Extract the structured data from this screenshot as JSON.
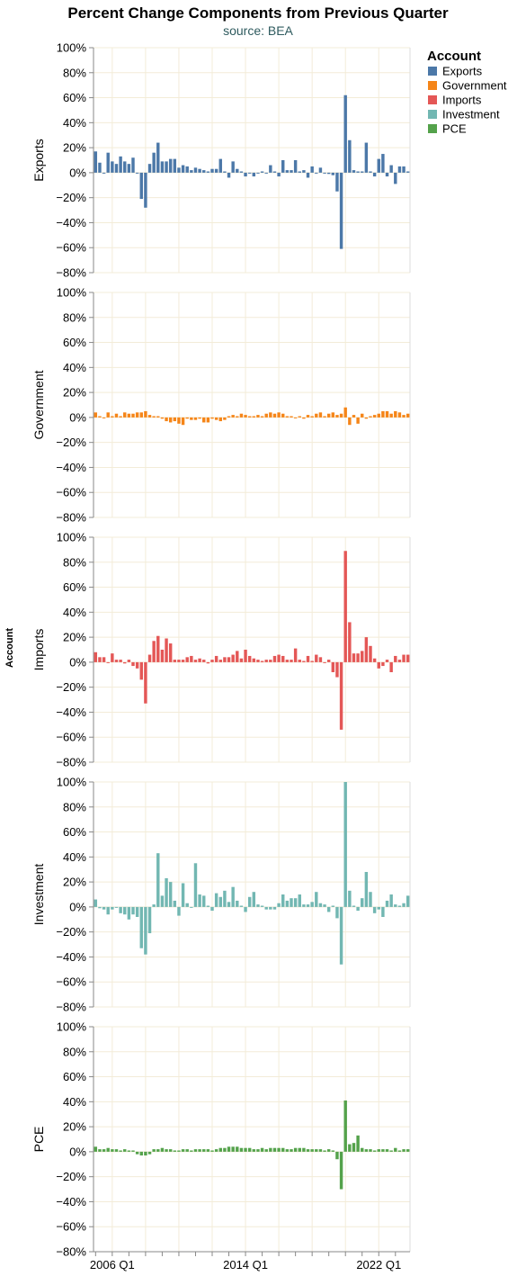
{
  "chart_data": {
    "type": "bar",
    "title": "Percent Change Components from Previous Quarter",
    "subtitle": "source: BEA",
    "row_title": "Account",
    "y_ticks": [
      "100%",
      "80%",
      "60%",
      "40%",
      "20%",
      "0%",
      "−20%",
      "−40%",
      "−60%",
      "−80%"
    ],
    "ylim": [
      -80,
      100
    ],
    "x_tick_labels": [
      {
        "label": "2006 Q1",
        "index": 4
      },
      {
        "label": "2014 Q1",
        "index": 36
      },
      {
        "label": "2022 Q1",
        "index": 68
      }
    ],
    "x_start": "2005 Q1",
    "n_quarters": 76,
    "legend": {
      "title": "Account",
      "placement": "top-right",
      "items": [
        {
          "label": "Exports",
          "color": "#4c78a8"
        },
        {
          "label": "Government",
          "color": "#f58518"
        },
        {
          "label": "Imports",
          "color": "#e45756"
        },
        {
          "label": "Investment",
          "color": "#72b7b2"
        },
        {
          "label": "PCE",
          "color": "#54a24b"
        }
      ]
    },
    "series": [
      {
        "name": "Exports",
        "color": "#4c78a8",
        "values": [
          17,
          8,
          0,
          16,
          9,
          7,
          13,
          9,
          7,
          12,
          0,
          -21,
          -28,
          7,
          16,
          24,
          9,
          9,
          11,
          11,
          4,
          6,
          5,
          2,
          4,
          3,
          2,
          1,
          3,
          3,
          11,
          1,
          -4,
          9,
          3,
          1,
          -3,
          0,
          -3,
          0,
          1,
          0,
          6,
          1,
          -3,
          10,
          2,
          2,
          10,
          1,
          2,
          -4,
          5,
          0,
          4,
          0,
          -1,
          -2,
          -15,
          -61,
          62,
          26,
          2,
          1,
          1,
          24,
          1,
          -3,
          11,
          15,
          -3,
          6,
          -9,
          5,
          5,
          1
        ]
      },
      {
        "name": "Government",
        "color": "#f58518",
        "values": [
          4,
          1,
          0,
          4,
          1,
          3,
          1,
          4,
          3,
          3,
          4,
          4,
          5,
          2,
          1,
          1,
          -1,
          -3,
          -4,
          -3,
          -5,
          -6,
          -1,
          -2,
          -2,
          -1,
          -4,
          -4,
          -1,
          -2,
          -3,
          -2,
          1,
          2,
          1,
          3,
          2,
          1,
          1,
          2,
          1,
          3,
          4,
          3,
          4,
          3,
          1,
          1,
          0,
          1,
          -1,
          2,
          1,
          3,
          4,
          1,
          3,
          4,
          2,
          3,
          8,
          -6,
          2,
          -5,
          3,
          -1,
          1,
          2,
          3,
          5,
          5,
          3,
          5,
          4,
          2,
          3
        ]
      },
      {
        "name": "Imports",
        "color": "#e45756",
        "values": [
          8,
          4,
          4,
          0,
          7,
          2,
          2,
          -1,
          2,
          -3,
          -5,
          -14,
          -33,
          6,
          17,
          21,
          10,
          19,
          15,
          2,
          2,
          2,
          4,
          5,
          2,
          3,
          2,
          -1,
          2,
          5,
          2,
          4,
          4,
          6,
          9,
          3,
          10,
          5,
          3,
          2,
          1,
          2,
          2,
          5,
          6,
          5,
          2,
          2,
          11,
          2,
          1,
          5,
          1,
          6,
          4,
          0,
          2,
          -8,
          -12,
          -54,
          89,
          32,
          7,
          7,
          9,
          20,
          13,
          3,
          -5,
          -3,
          2,
          -8,
          5,
          2,
          6,
          6
        ]
      },
      {
        "name": "Investment",
        "color": "#72b7b2",
        "values": [
          6,
          -1,
          -2,
          -6,
          -2,
          0,
          -5,
          -6,
          -10,
          -6,
          -8,
          -33,
          -38,
          -21,
          2,
          43,
          9,
          23,
          20,
          5,
          -7,
          19,
          3,
          0,
          35,
          10,
          9,
          1,
          -3,
          11,
          8,
          13,
          4,
          16,
          5,
          1,
          -4,
          8,
          12,
          2,
          1,
          -2,
          -2,
          -2,
          3,
          10,
          5,
          7,
          7,
          10,
          2,
          2,
          4,
          12,
          3,
          2,
          -4,
          1,
          -9,
          -46,
          100,
          13,
          1,
          -3,
          7,
          28,
          12,
          -5,
          -2,
          -8,
          5,
          10,
          2,
          1,
          3,
          9
        ]
      },
      {
        "name": "PCE",
        "color": "#54a24b",
        "values": [
          4,
          2,
          2,
          3,
          2,
          2,
          1,
          2,
          1,
          1,
          -2,
          -3,
          -3,
          -2,
          2,
          2,
          3,
          2,
          2,
          1,
          1,
          2,
          2,
          1,
          2,
          2,
          2,
          2,
          1,
          2,
          3,
          3,
          4,
          4,
          4,
          3,
          3,
          3,
          2,
          2,
          3,
          2,
          3,
          3,
          3,
          3,
          2,
          2,
          3,
          3,
          3,
          2,
          2,
          2,
          2,
          1,
          2,
          1,
          -6,
          -30,
          41,
          6,
          7,
          13,
          3,
          2,
          2,
          1,
          2,
          2,
          2,
          1,
          3,
          1,
          2,
          2
        ]
      }
    ]
  }
}
